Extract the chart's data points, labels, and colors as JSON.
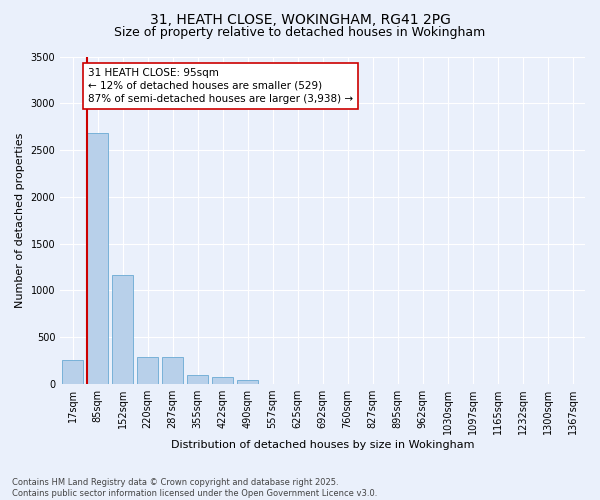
{
  "title_line1": "31, HEATH CLOSE, WOKINGHAM, RG41 2PG",
  "title_line2": "Size of property relative to detached houses in Wokingham",
  "xlabel": "Distribution of detached houses by size in Wokingham",
  "ylabel": "Number of detached properties",
  "categories": [
    "17sqm",
    "85sqm",
    "152sqm",
    "220sqm",
    "287sqm",
    "355sqm",
    "422sqm",
    "490sqm",
    "557sqm",
    "625sqm",
    "692sqm",
    "760sqm",
    "827sqm",
    "895sqm",
    "962sqm",
    "1030sqm",
    "1097sqm",
    "1165sqm",
    "1232sqm",
    "1300sqm",
    "1367sqm"
  ],
  "values": [
    255,
    2680,
    1170,
    290,
    285,
    95,
    75,
    40,
    2,
    1,
    1,
    1,
    1,
    1,
    1,
    1,
    1,
    1,
    1,
    1,
    1
  ],
  "bar_color": "#b8d0ea",
  "bar_edge_color": "#6aaad4",
  "vline_color": "#cc0000",
  "annotation_text": "31 HEATH CLOSE: 95sqm\n← 12% of detached houses are smaller (529)\n87% of semi-detached houses are larger (3,938) →",
  "annotation_box_color": "#ffffff",
  "annotation_box_edge": "#cc0000",
  "ylim": [
    0,
    3500
  ],
  "yticks": [
    0,
    500,
    1000,
    1500,
    2000,
    2500,
    3000,
    3500
  ],
  "background_color": "#eaf0fb",
  "grid_color": "#ffffff",
  "footer_line1": "Contains HM Land Registry data © Crown copyright and database right 2025.",
  "footer_line2": "Contains public sector information licensed under the Open Government Licence v3.0.",
  "title_fontsize": 10,
  "subtitle_fontsize": 9,
  "axis_label_fontsize": 8,
  "tick_fontsize": 7,
  "annotation_fontsize": 7.5,
  "footer_fontsize": 6
}
